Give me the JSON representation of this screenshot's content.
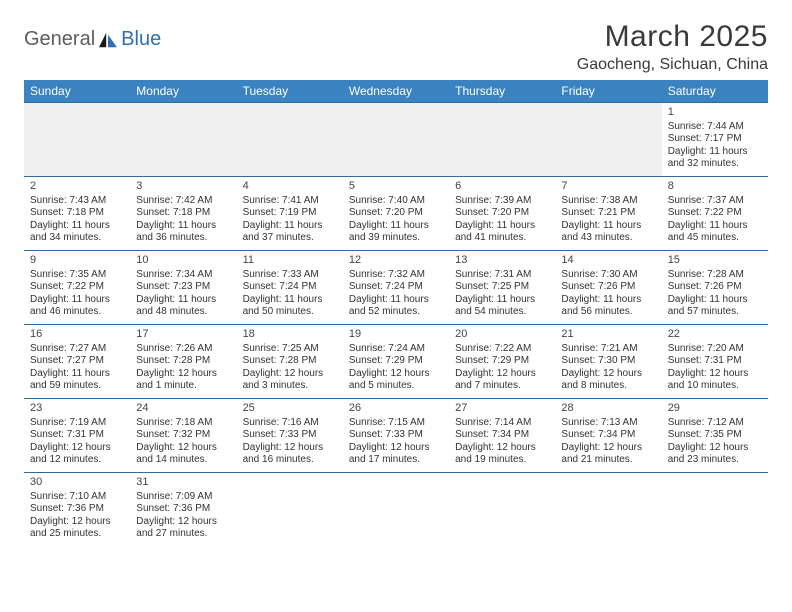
{
  "logo": {
    "text1": "General",
    "text2": "Blue"
  },
  "title": "March 2025",
  "location": "Gaocheng, Sichuan, China",
  "colors": {
    "header_bg": "#3b83c0",
    "header_text": "#ffffff",
    "border": "#2e6da4",
    "logo_gray": "#5c5c5c",
    "logo_blue": "#2f6fb2",
    "empty_bg": "#f0f0f0"
  },
  "weekdays": [
    "Sunday",
    "Monday",
    "Tuesday",
    "Wednesday",
    "Thursday",
    "Friday",
    "Saturday"
  ],
  "weeks": [
    [
      null,
      null,
      null,
      null,
      null,
      null,
      {
        "day": "1",
        "sunrise": "Sunrise: 7:44 AM",
        "sunset": "Sunset: 7:17 PM",
        "daylight": "Daylight: 11 hours and 32 minutes."
      }
    ],
    [
      {
        "day": "2",
        "sunrise": "Sunrise: 7:43 AM",
        "sunset": "Sunset: 7:18 PM",
        "daylight": "Daylight: 11 hours and 34 minutes."
      },
      {
        "day": "3",
        "sunrise": "Sunrise: 7:42 AM",
        "sunset": "Sunset: 7:18 PM",
        "daylight": "Daylight: 11 hours and 36 minutes."
      },
      {
        "day": "4",
        "sunrise": "Sunrise: 7:41 AM",
        "sunset": "Sunset: 7:19 PM",
        "daylight": "Daylight: 11 hours and 37 minutes."
      },
      {
        "day": "5",
        "sunrise": "Sunrise: 7:40 AM",
        "sunset": "Sunset: 7:20 PM",
        "daylight": "Daylight: 11 hours and 39 minutes."
      },
      {
        "day": "6",
        "sunrise": "Sunrise: 7:39 AM",
        "sunset": "Sunset: 7:20 PM",
        "daylight": "Daylight: 11 hours and 41 minutes."
      },
      {
        "day": "7",
        "sunrise": "Sunrise: 7:38 AM",
        "sunset": "Sunset: 7:21 PM",
        "daylight": "Daylight: 11 hours and 43 minutes."
      },
      {
        "day": "8",
        "sunrise": "Sunrise: 7:37 AM",
        "sunset": "Sunset: 7:22 PM",
        "daylight": "Daylight: 11 hours and 45 minutes."
      }
    ],
    [
      {
        "day": "9",
        "sunrise": "Sunrise: 7:35 AM",
        "sunset": "Sunset: 7:22 PM",
        "daylight": "Daylight: 11 hours and 46 minutes."
      },
      {
        "day": "10",
        "sunrise": "Sunrise: 7:34 AM",
        "sunset": "Sunset: 7:23 PM",
        "daylight": "Daylight: 11 hours and 48 minutes."
      },
      {
        "day": "11",
        "sunrise": "Sunrise: 7:33 AM",
        "sunset": "Sunset: 7:24 PM",
        "daylight": "Daylight: 11 hours and 50 minutes."
      },
      {
        "day": "12",
        "sunrise": "Sunrise: 7:32 AM",
        "sunset": "Sunset: 7:24 PM",
        "daylight": "Daylight: 11 hours and 52 minutes."
      },
      {
        "day": "13",
        "sunrise": "Sunrise: 7:31 AM",
        "sunset": "Sunset: 7:25 PM",
        "daylight": "Daylight: 11 hours and 54 minutes."
      },
      {
        "day": "14",
        "sunrise": "Sunrise: 7:30 AM",
        "sunset": "Sunset: 7:26 PM",
        "daylight": "Daylight: 11 hours and 56 minutes."
      },
      {
        "day": "15",
        "sunrise": "Sunrise: 7:28 AM",
        "sunset": "Sunset: 7:26 PM",
        "daylight": "Daylight: 11 hours and 57 minutes."
      }
    ],
    [
      {
        "day": "16",
        "sunrise": "Sunrise: 7:27 AM",
        "sunset": "Sunset: 7:27 PM",
        "daylight": "Daylight: 11 hours and 59 minutes."
      },
      {
        "day": "17",
        "sunrise": "Sunrise: 7:26 AM",
        "sunset": "Sunset: 7:28 PM",
        "daylight": "Daylight: 12 hours and 1 minute."
      },
      {
        "day": "18",
        "sunrise": "Sunrise: 7:25 AM",
        "sunset": "Sunset: 7:28 PM",
        "daylight": "Daylight: 12 hours and 3 minutes."
      },
      {
        "day": "19",
        "sunrise": "Sunrise: 7:24 AM",
        "sunset": "Sunset: 7:29 PM",
        "daylight": "Daylight: 12 hours and 5 minutes."
      },
      {
        "day": "20",
        "sunrise": "Sunrise: 7:22 AM",
        "sunset": "Sunset: 7:29 PM",
        "daylight": "Daylight: 12 hours and 7 minutes."
      },
      {
        "day": "21",
        "sunrise": "Sunrise: 7:21 AM",
        "sunset": "Sunset: 7:30 PM",
        "daylight": "Daylight: 12 hours and 8 minutes."
      },
      {
        "day": "22",
        "sunrise": "Sunrise: 7:20 AM",
        "sunset": "Sunset: 7:31 PM",
        "daylight": "Daylight: 12 hours and 10 minutes."
      }
    ],
    [
      {
        "day": "23",
        "sunrise": "Sunrise: 7:19 AM",
        "sunset": "Sunset: 7:31 PM",
        "daylight": "Daylight: 12 hours and 12 minutes."
      },
      {
        "day": "24",
        "sunrise": "Sunrise: 7:18 AM",
        "sunset": "Sunset: 7:32 PM",
        "daylight": "Daylight: 12 hours and 14 minutes."
      },
      {
        "day": "25",
        "sunrise": "Sunrise: 7:16 AM",
        "sunset": "Sunset: 7:33 PM",
        "daylight": "Daylight: 12 hours and 16 minutes."
      },
      {
        "day": "26",
        "sunrise": "Sunrise: 7:15 AM",
        "sunset": "Sunset: 7:33 PM",
        "daylight": "Daylight: 12 hours and 17 minutes."
      },
      {
        "day": "27",
        "sunrise": "Sunrise: 7:14 AM",
        "sunset": "Sunset: 7:34 PM",
        "daylight": "Daylight: 12 hours and 19 minutes."
      },
      {
        "day": "28",
        "sunrise": "Sunrise: 7:13 AM",
        "sunset": "Sunset: 7:34 PM",
        "daylight": "Daylight: 12 hours and 21 minutes."
      },
      {
        "day": "29",
        "sunrise": "Sunrise: 7:12 AM",
        "sunset": "Sunset: 7:35 PM",
        "daylight": "Daylight: 12 hours and 23 minutes."
      }
    ],
    [
      {
        "day": "30",
        "sunrise": "Sunrise: 7:10 AM",
        "sunset": "Sunset: 7:36 PM",
        "daylight": "Daylight: 12 hours and 25 minutes."
      },
      {
        "day": "31",
        "sunrise": "Sunrise: 7:09 AM",
        "sunset": "Sunset: 7:36 PM",
        "daylight": "Daylight: 12 hours and 27 minutes."
      },
      null,
      null,
      null,
      null,
      null
    ]
  ]
}
